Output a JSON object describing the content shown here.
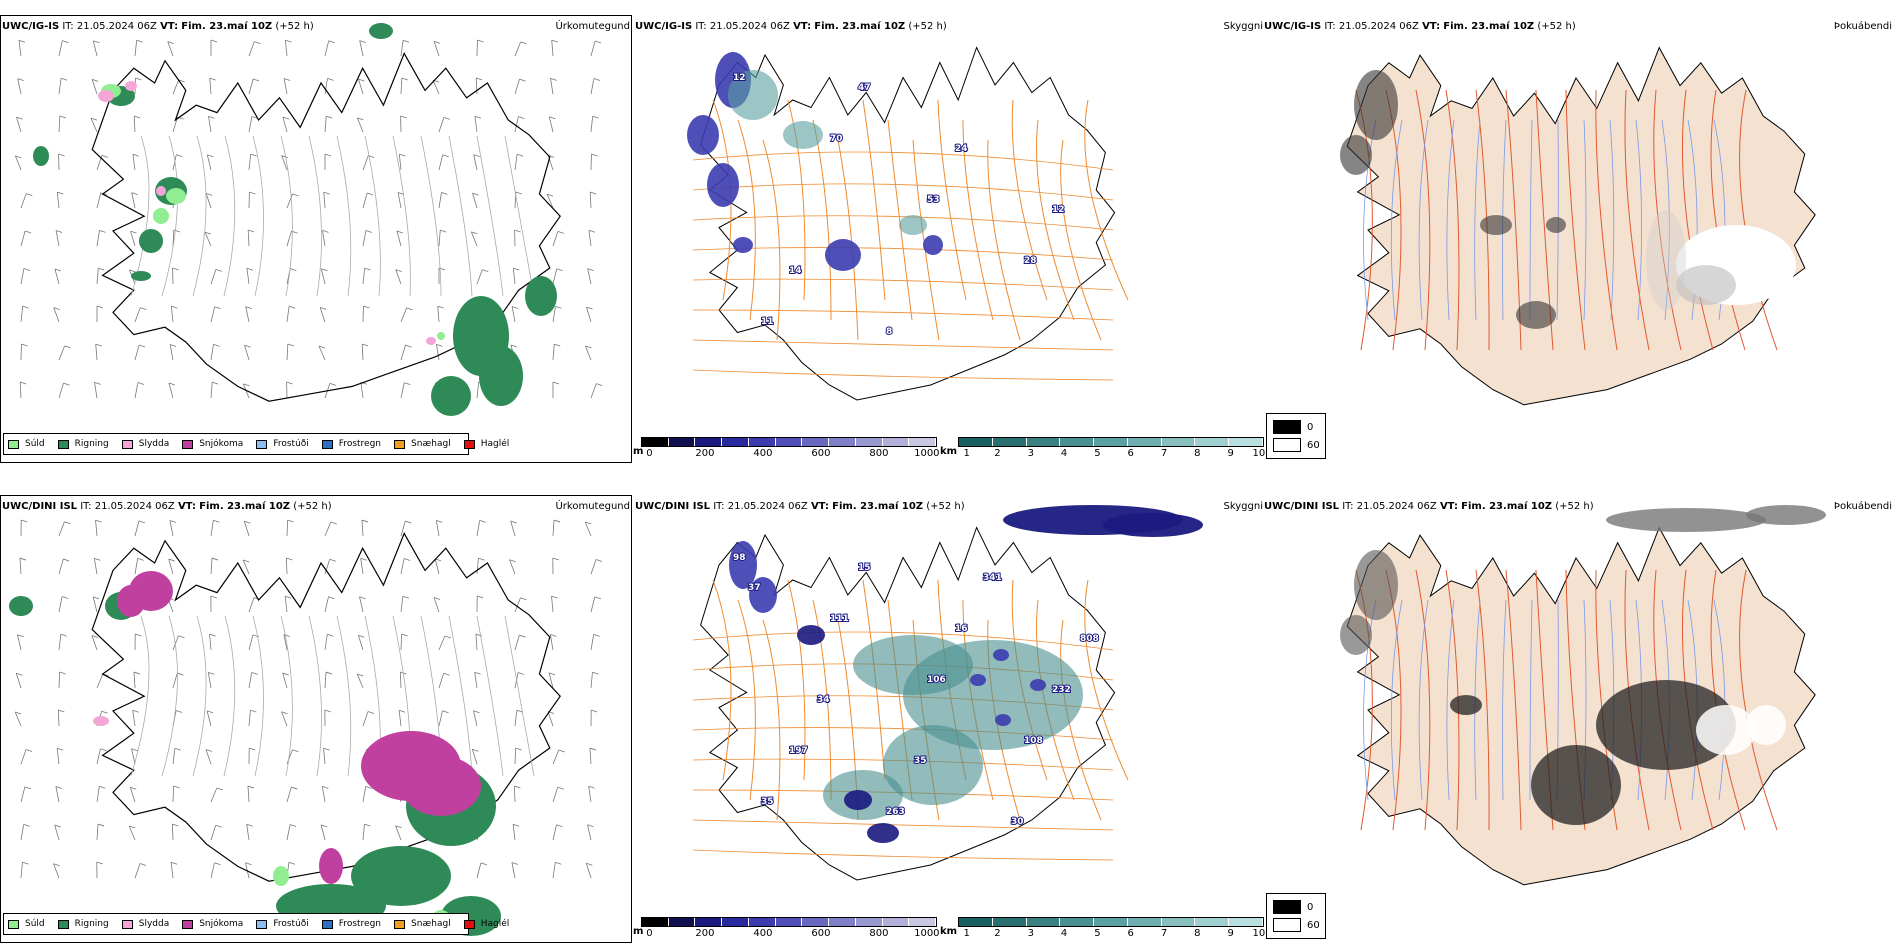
{
  "rows": [
    {
      "model": "UWC/IG-IS",
      "it_label": "IT:",
      "it_value": "21.05.2024 06Z",
      "vt_label": "VT:",
      "vt_value": "Fim. 23.maí 10Z",
      "lead": "(+52 h)",
      "precip_title": "Úrkomutegund",
      "cloud_title": "Skyggni",
      "fog_title": "Þokuábendi",
      "cloud_labels": [
        "12",
        "70",
        "53",
        "28",
        "11",
        "47",
        "24",
        "12",
        "14",
        "8"
      ],
      "cloud_label_pos": []
    },
    {
      "model": "UWC/DINI ISL",
      "it_label": "IT:",
      "it_value": "21.05.2024 06Z",
      "vt_label": "VT:",
      "vt_value": "Fim. 23.maí 10Z",
      "lead": "(+52 h)",
      "precip_title": "Úrkomutegund",
      "cloud_title": "Skyggni",
      "fog_title": "Þokuábendi",
      "cloud_labels": [
        "98",
        "111",
        "106",
        "108",
        "35",
        "15",
        "16",
        "232",
        "197",
        "263",
        "341",
        "808",
        "34",
        "35",
        "30",
        "37"
      ]
    }
  ],
  "precip_legend": [
    {
      "label": "Súld",
      "color": "#90ee90"
    },
    {
      "label": "Rigning",
      "color": "#2e8b57"
    },
    {
      "label": "Slydda",
      "color": "#f4a6d7"
    },
    {
      "label": "Snjókoma",
      "color": "#c040a0"
    },
    {
      "label": "Frostúði",
      "color": "#87bff0"
    },
    {
      "label": "Frostregn",
      "color": "#3070c0"
    },
    {
      "label": "Snæhagl",
      "color": "#f0a020"
    },
    {
      "label": "Haglél",
      "color": "#e01010"
    }
  ],
  "cbar_m": {
    "unit": "m",
    "ticks": [
      "0",
      "200",
      "400",
      "600",
      "800",
      "1000"
    ],
    "colors": [
      "#000000",
      "#101050",
      "#1a1a80",
      "#2a2aa0",
      "#3c3cb0",
      "#5050b8",
      "#6868c0",
      "#8080c8",
      "#9898d0",
      "#b0b0d8",
      "#c8c8e0"
    ]
  },
  "cbar_km": {
    "unit": "km",
    "ticks": [
      "1",
      "2",
      "3",
      "4",
      "5",
      "6",
      "7",
      "8",
      "9",
      "10"
    ],
    "colors": [
      "#1a6060",
      "#2a7070",
      "#3a8080",
      "#4a9090",
      "#5aa0a0",
      "#70b0b0",
      "#88c0c0",
      "#a0d0d0",
      "#b8e0e0"
    ]
  },
  "fog_legend": {
    "dark": "0",
    "light": "60"
  }
}
